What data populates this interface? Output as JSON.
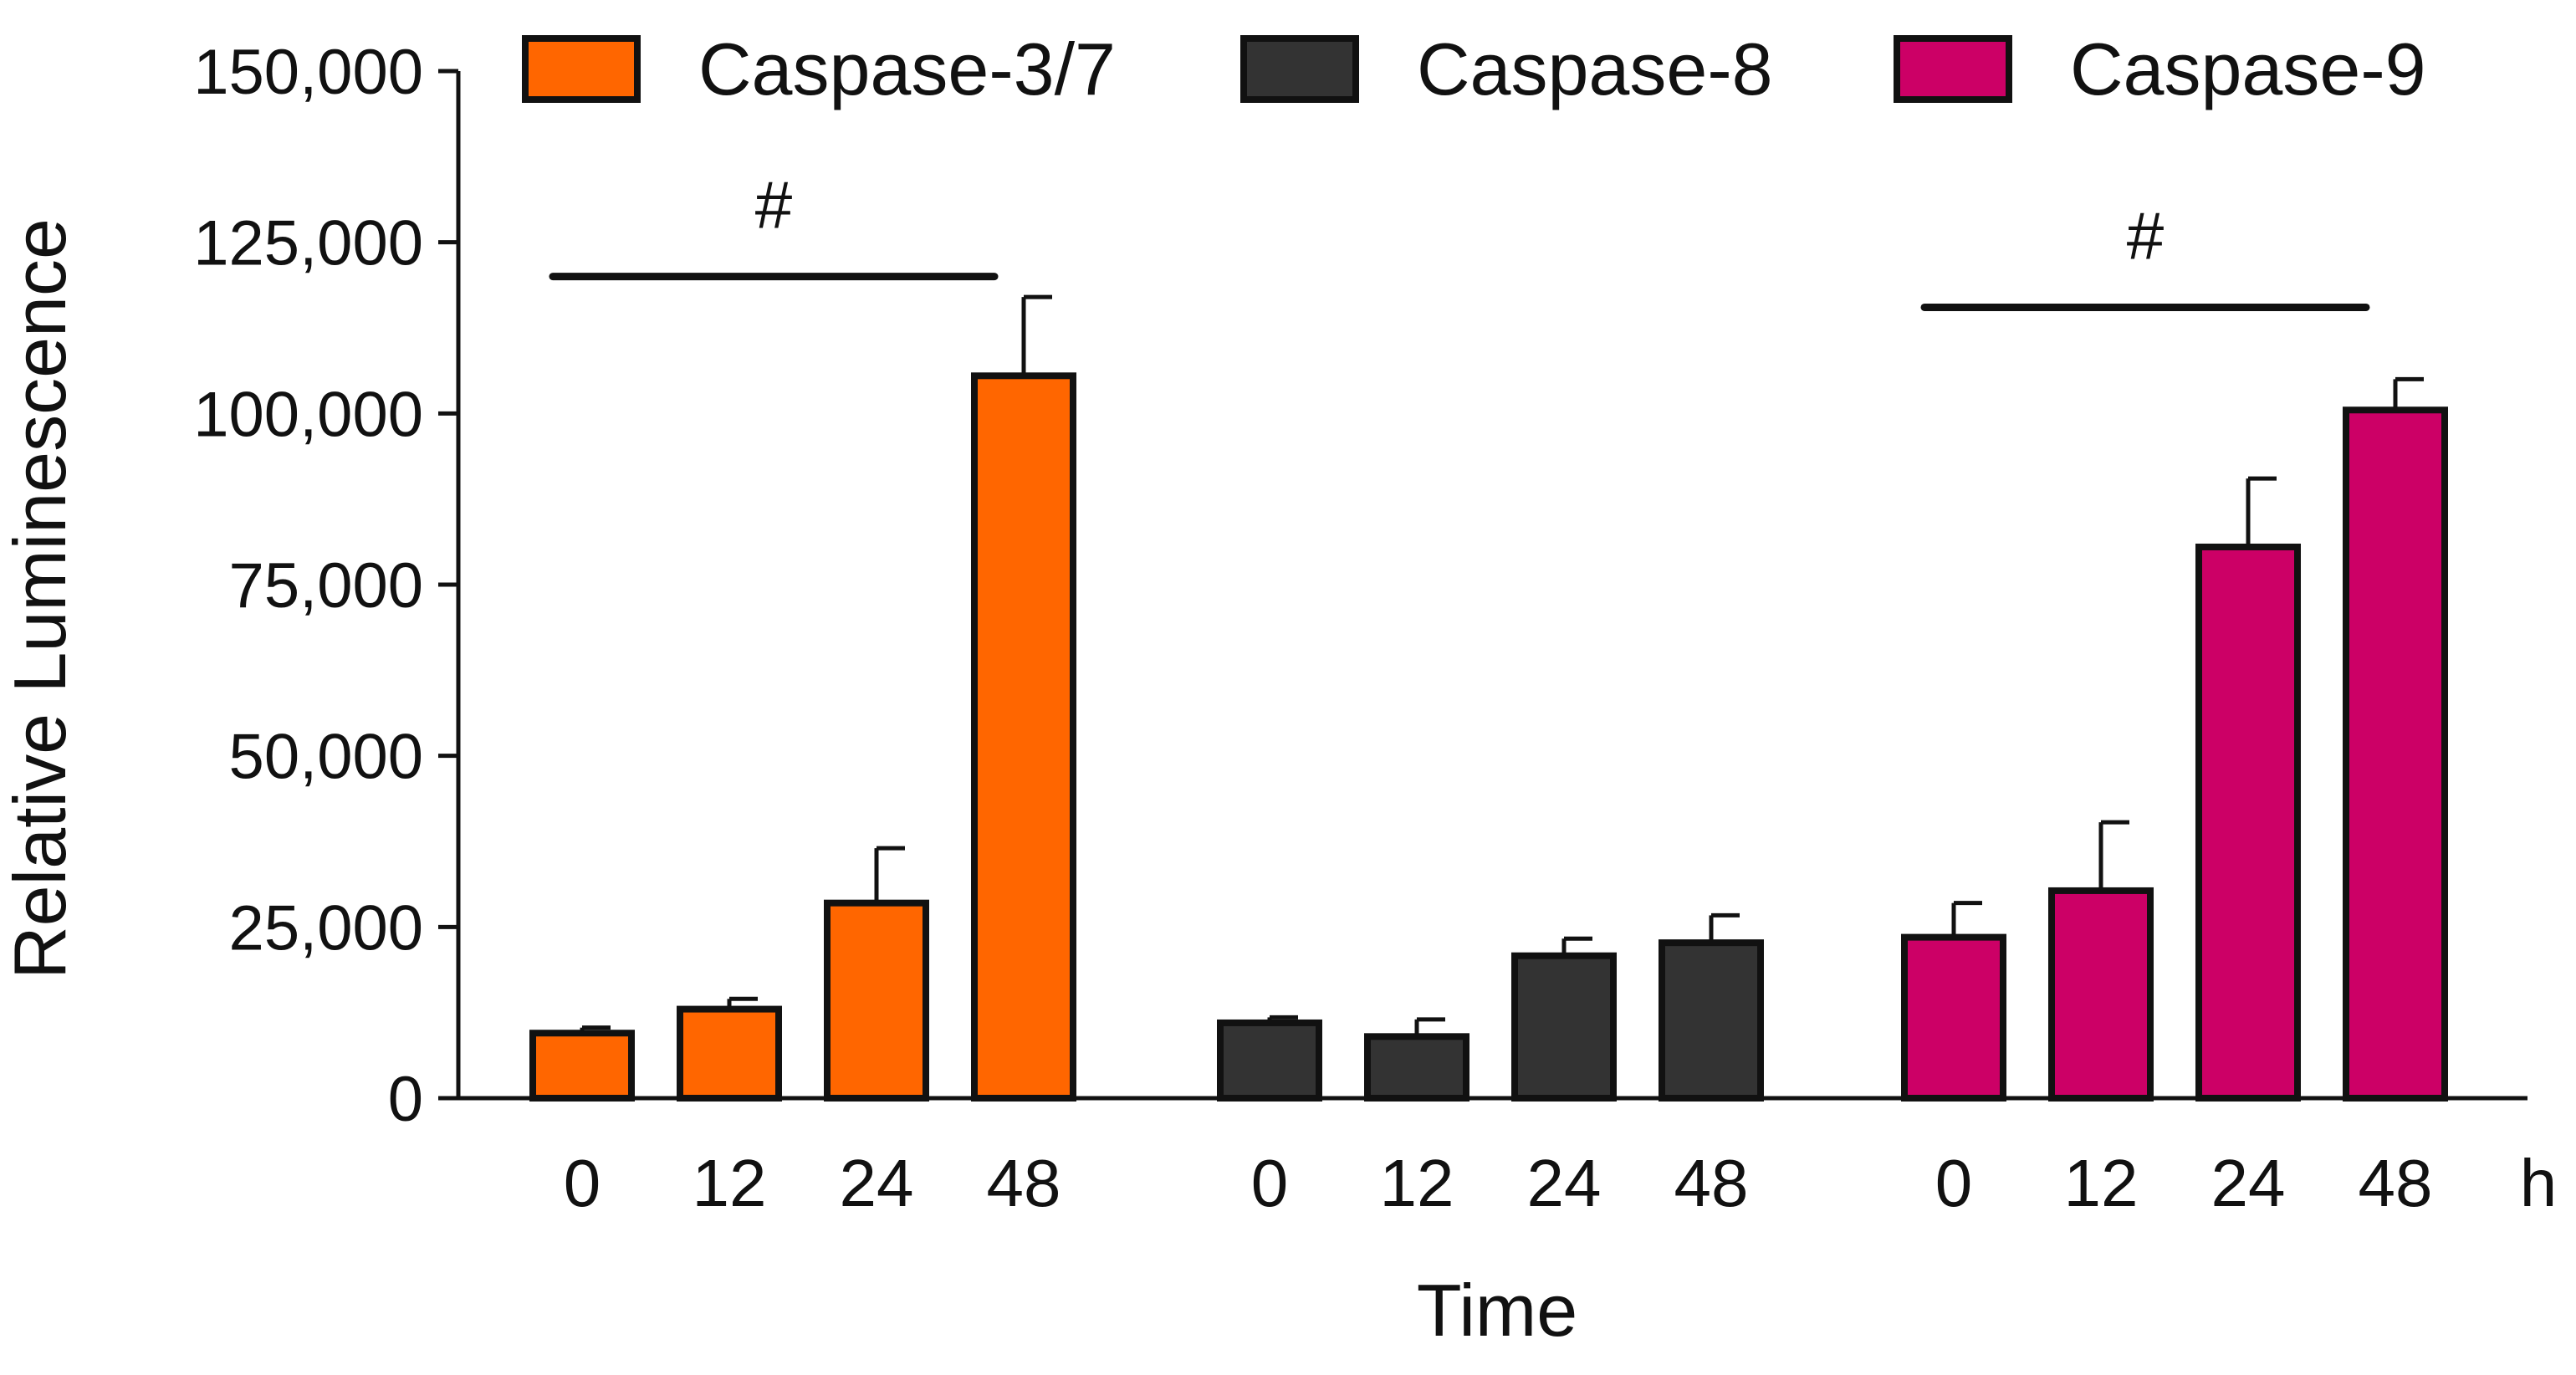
{
  "chart_data": {
    "type": "bar",
    "title": "",
    "xlabel": "Time",
    "ylabel": "Relative Luminescence",
    "x_unit": "h",
    "ylim": [
      0,
      150000
    ],
    "yticks": [
      0,
      25000,
      50000,
      75000,
      100000,
      125000,
      150000
    ],
    "ytick_labels": [
      "0",
      "25,000",
      "50,000",
      "75,000",
      "100,000",
      "125,000",
      "150,000"
    ],
    "categories": [
      "0",
      "12",
      "24",
      "48"
    ],
    "legend_position": "top",
    "groups": [
      {
        "name": "Caspase-3/7",
        "color": "#FF6600",
        "values": [
          9500,
          13000,
          28500,
          105500
        ],
        "errors": [
          800,
          1500,
          8000,
          11500
        ],
        "significance": {
          "label": "#",
          "from": 0,
          "to": 3,
          "level": 120000
        }
      },
      {
        "name": "Caspase-8",
        "color": "#333333",
        "values": [
          11000,
          9000,
          20800,
          22700
        ],
        "errors": [
          800,
          2500,
          2500,
          4000
        ],
        "significance": null
      },
      {
        "name": "Caspase-9",
        "color": "#CC0066",
        "values": [
          23500,
          30300,
          80500,
          100500
        ],
        "errors": [
          5000,
          10000,
          10000,
          4500
        ],
        "significance": {
          "label": "#",
          "from": 0,
          "to": 3,
          "level": 115500
        }
      }
    ]
  }
}
